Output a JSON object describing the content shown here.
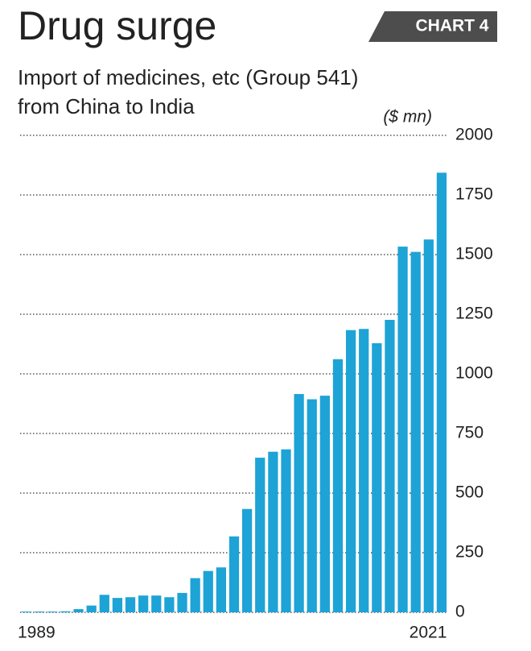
{
  "chart_data": {
    "type": "bar",
    "title": "Drug surge",
    "badge": "CHART 4",
    "subtitle": [
      "Import of medicines, etc (Group 541)",
      "from China to India"
    ],
    "unit": "($ mn)",
    "categories": [
      "1989",
      null,
      null,
      null,
      null,
      null,
      null,
      null,
      null,
      null,
      null,
      null,
      null,
      null,
      null,
      null,
      null,
      null,
      null,
      null,
      null,
      null,
      null,
      null,
      null,
      null,
      null,
      null,
      null,
      null,
      null,
      null,
      "2021"
    ],
    "values": [
      0,
      0,
      0,
      1,
      10,
      25,
      70,
      57,
      60,
      67,
      67,
      60,
      78,
      140,
      170,
      185,
      315,
      430,
      645,
      670,
      680,
      912,
      890,
      905,
      1058,
      1180,
      1185,
      1125,
      1223,
      1530,
      1508,
      1560,
      1840
    ],
    "color": "#1ea3d6",
    "ylim": [
      0,
      2000
    ],
    "yticks": [
      0,
      250,
      500,
      750,
      1000,
      1250,
      1500,
      1750,
      2000
    ],
    "grid": true
  }
}
